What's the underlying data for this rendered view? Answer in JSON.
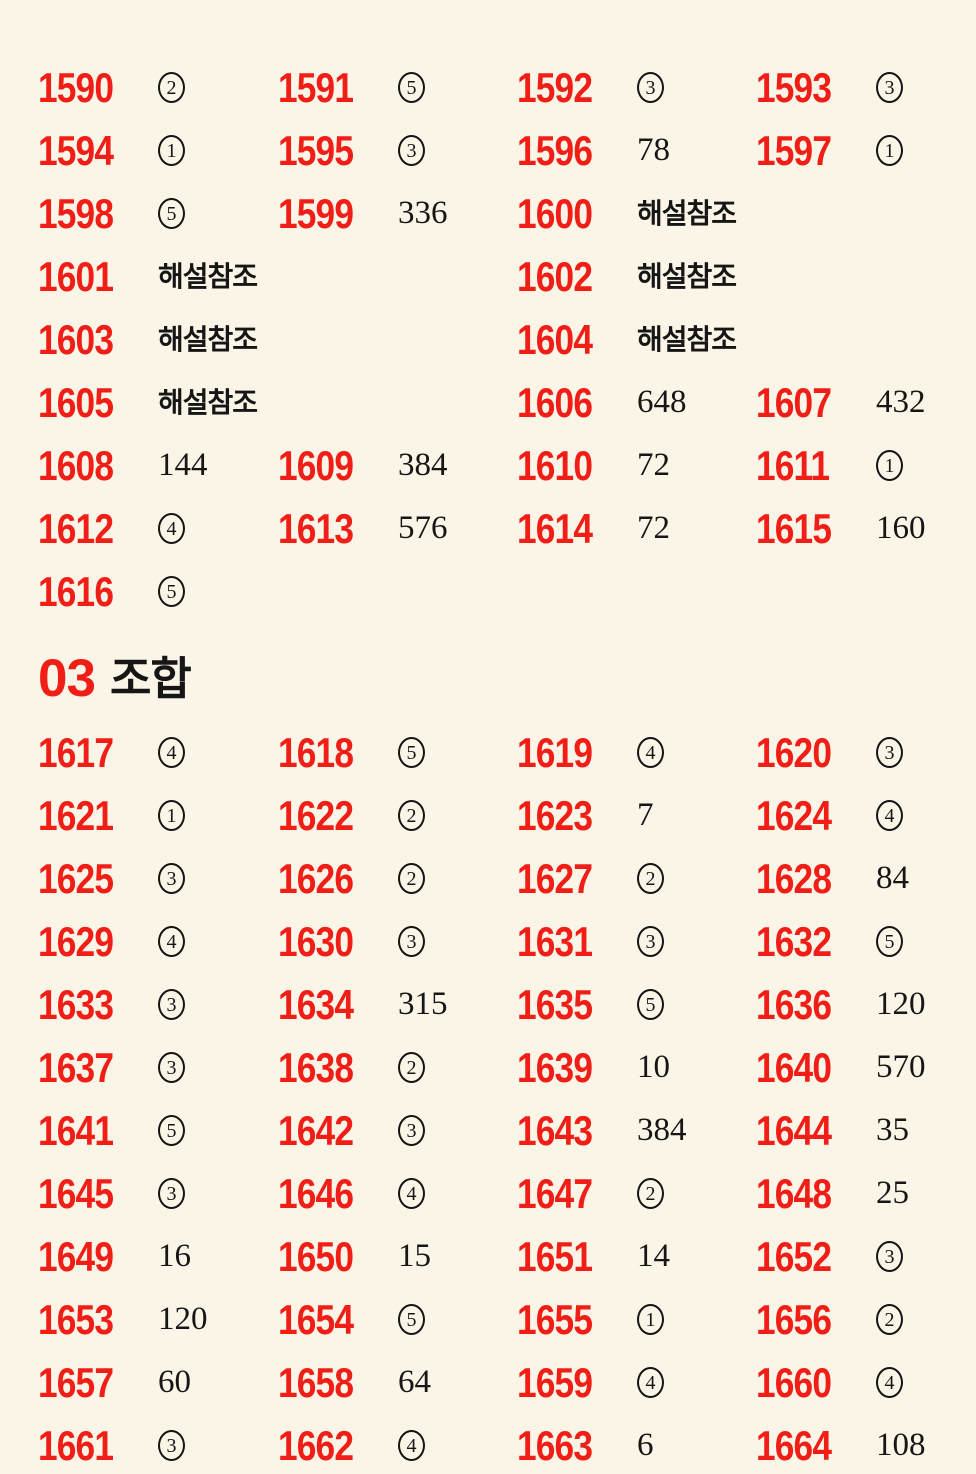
{
  "page": {
    "background_color": "#fbf5e7",
    "accent_red": "#f01e17",
    "text_black": "#161616",
    "see_explanation_label": "해설참조"
  },
  "section_header": {
    "number": "03",
    "title": "조합"
  },
  "answer_grid_top": {
    "rows": [
      [
        {
          "n": "1590",
          "a": "②"
        },
        {
          "n": "1591",
          "a": "⑤"
        },
        {
          "n": "1592",
          "a": "③"
        },
        {
          "n": "1593",
          "a": "③"
        }
      ],
      [
        {
          "n": "1594",
          "a": "①"
        },
        {
          "n": "1595",
          "a": "③"
        },
        {
          "n": "1596",
          "a": "78"
        },
        {
          "n": "1597",
          "a": "①"
        }
      ],
      [
        {
          "n": "1598",
          "a": "⑤"
        },
        {
          "n": "1599",
          "a": "336"
        },
        {
          "n": "1600",
          "a": "해설참조",
          "wide": true
        }
      ],
      [
        {
          "n": "1601",
          "a": "해설참조",
          "wide": true
        },
        {
          "n": "1602",
          "a": "해설참조",
          "wide": true
        }
      ],
      [
        {
          "n": "1603",
          "a": "해설참조",
          "wide": true
        },
        {
          "n": "1604",
          "a": "해설참조",
          "wide": true
        }
      ],
      [
        {
          "n": "1605",
          "a": "해설참조",
          "wide": true
        },
        {
          "n": "1606",
          "a": "648"
        },
        {
          "n": "1607",
          "a": "432"
        }
      ],
      [
        {
          "n": "1608",
          "a": "144"
        },
        {
          "n": "1609",
          "a": "384"
        },
        {
          "n": "1610",
          "a": "72"
        },
        {
          "n": "1611",
          "a": "①"
        }
      ],
      [
        {
          "n": "1612",
          "a": "④"
        },
        {
          "n": "1613",
          "a": "576"
        },
        {
          "n": "1614",
          "a": "72"
        },
        {
          "n": "1615",
          "a": "160"
        }
      ],
      [
        {
          "n": "1616",
          "a": "⑤"
        }
      ]
    ]
  },
  "answer_grid_bottom": {
    "rows": [
      [
        {
          "n": "1617",
          "a": "④"
        },
        {
          "n": "1618",
          "a": "⑤"
        },
        {
          "n": "1619",
          "a": "④"
        },
        {
          "n": "1620",
          "a": "③"
        }
      ],
      [
        {
          "n": "1621",
          "a": "①"
        },
        {
          "n": "1622",
          "a": "②"
        },
        {
          "n": "1623",
          "a": "7"
        },
        {
          "n": "1624",
          "a": "④"
        }
      ],
      [
        {
          "n": "1625",
          "a": "③"
        },
        {
          "n": "1626",
          "a": "②"
        },
        {
          "n": "1627",
          "a": "②"
        },
        {
          "n": "1628",
          "a": "84"
        }
      ],
      [
        {
          "n": "1629",
          "a": "④"
        },
        {
          "n": "1630",
          "a": "③"
        },
        {
          "n": "1631",
          "a": "③"
        },
        {
          "n": "1632",
          "a": "⑤"
        }
      ],
      [
        {
          "n": "1633",
          "a": "③"
        },
        {
          "n": "1634",
          "a": "315"
        },
        {
          "n": "1635",
          "a": "⑤"
        },
        {
          "n": "1636",
          "a": "120"
        }
      ],
      [
        {
          "n": "1637",
          "a": "③"
        },
        {
          "n": "1638",
          "a": "②"
        },
        {
          "n": "1639",
          "a": "10"
        },
        {
          "n": "1640",
          "a": "570"
        }
      ],
      [
        {
          "n": "1641",
          "a": "⑤"
        },
        {
          "n": "1642",
          "a": "③"
        },
        {
          "n": "1643",
          "a": "384"
        },
        {
          "n": "1644",
          "a": "35"
        }
      ],
      [
        {
          "n": "1645",
          "a": "③"
        },
        {
          "n": "1646",
          "a": "④"
        },
        {
          "n": "1647",
          "a": "②"
        },
        {
          "n": "1648",
          "a": "25"
        }
      ],
      [
        {
          "n": "1649",
          "a": "16"
        },
        {
          "n": "1650",
          "a": "15"
        },
        {
          "n": "1651",
          "a": "14"
        },
        {
          "n": "1652",
          "a": "③"
        }
      ],
      [
        {
          "n": "1653",
          "a": "120"
        },
        {
          "n": "1654",
          "a": "⑤"
        },
        {
          "n": "1655",
          "a": "①"
        },
        {
          "n": "1656",
          "a": "②"
        }
      ],
      [
        {
          "n": "1657",
          "a": "60"
        },
        {
          "n": "1658",
          "a": "64"
        },
        {
          "n": "1659",
          "a": "④"
        },
        {
          "n": "1660",
          "a": "④"
        }
      ],
      [
        {
          "n": "1661",
          "a": "③"
        },
        {
          "n": "1662",
          "a": "④"
        },
        {
          "n": "1663",
          "a": "6"
        },
        {
          "n": "1664",
          "a": "108"
        }
      ]
    ]
  }
}
